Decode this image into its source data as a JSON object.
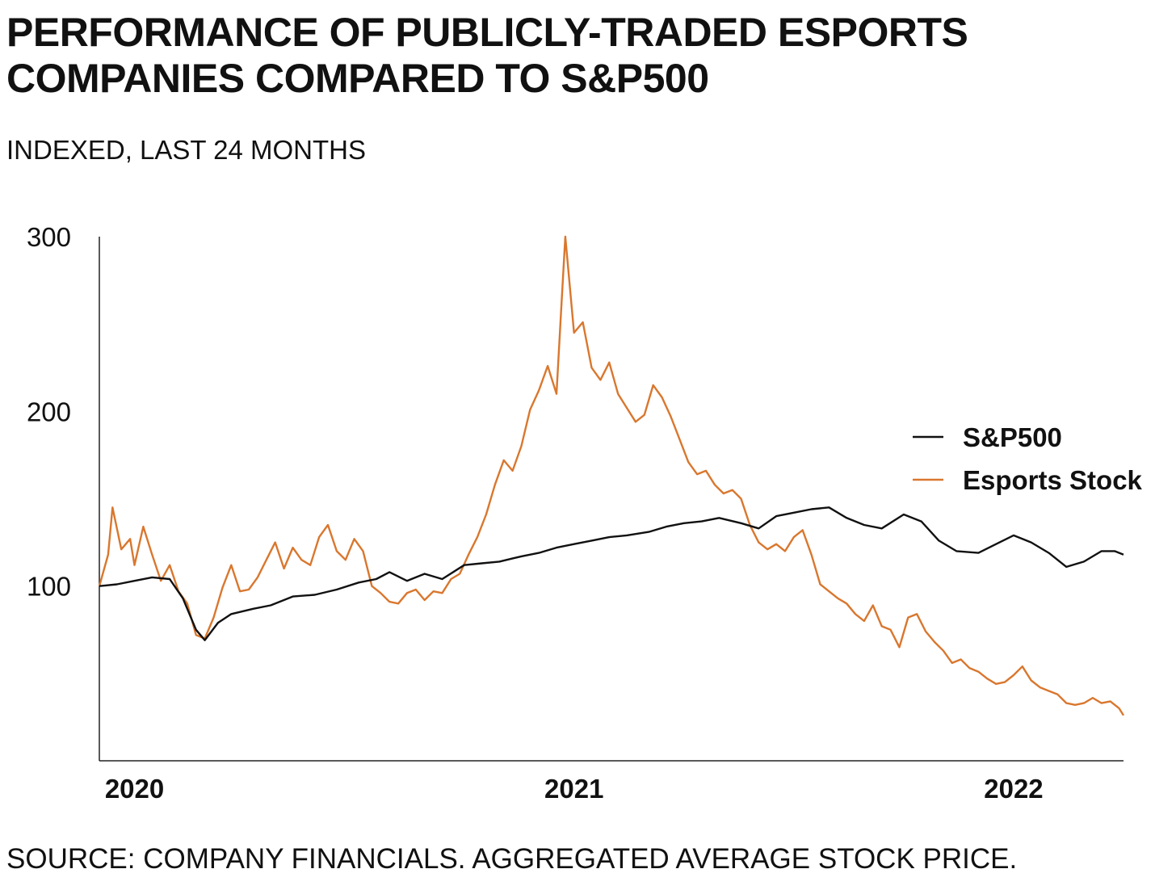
{
  "chart_data": {
    "type": "line",
    "title_line1": "PERFORMANCE OF PUBLICLY-TRADED ESPORTS",
    "title_line2": "COMPANIES COMPARED TO S&P500",
    "subtitle": "INDEXED, LAST 24 MONTHS",
    "source": "SOURCE: COMPANY FINANCIALS. AGGREGATED AVERAGE STOCK PRICE.",
    "xlabel": "",
    "ylabel": "",
    "x_range": [
      2019.92,
      2022.25
    ],
    "ylim": [
      0,
      300
    ],
    "y_ticks": [
      100,
      200,
      300
    ],
    "x_ticks": [
      {
        "value": 2020,
        "label": "2020"
      },
      {
        "value": 2021,
        "label": "2021"
      },
      {
        "value": 2022,
        "label": "2022"
      }
    ],
    "legend_position": "right",
    "grid": false,
    "series": [
      {
        "name": "S&P500",
        "color": "#111111",
        "points": [
          [
            2019.92,
            100
          ],
          [
            2019.96,
            101
          ],
          [
            2020.0,
            103
          ],
          [
            2020.04,
            105
          ],
          [
            2020.08,
            104
          ],
          [
            2020.11,
            93
          ],
          [
            2020.14,
            75
          ],
          [
            2020.16,
            69
          ],
          [
            2020.19,
            79
          ],
          [
            2020.22,
            84
          ],
          [
            2020.27,
            87
          ],
          [
            2020.31,
            89
          ],
          [
            2020.36,
            94
          ],
          [
            2020.41,
            95
          ],
          [
            2020.46,
            98
          ],
          [
            2020.51,
            102
          ],
          [
            2020.55,
            104
          ],
          [
            2020.58,
            108
          ],
          [
            2020.62,
            103
          ],
          [
            2020.66,
            107
          ],
          [
            2020.7,
            104
          ],
          [
            2020.75,
            112
          ],
          [
            2020.79,
            113
          ],
          [
            2020.83,
            114
          ],
          [
            2020.88,
            117
          ],
          [
            2020.92,
            119
          ],
          [
            2020.96,
            122
          ],
          [
            2021.0,
            124
          ],
          [
            2021.04,
            126
          ],
          [
            2021.08,
            128
          ],
          [
            2021.12,
            129
          ],
          [
            2021.17,
            131
          ],
          [
            2021.21,
            134
          ],
          [
            2021.25,
            136
          ],
          [
            2021.29,
            137
          ],
          [
            2021.33,
            139
          ],
          [
            2021.38,
            136
          ],
          [
            2021.42,
            133
          ],
          [
            2021.46,
            140
          ],
          [
            2021.5,
            142
          ],
          [
            2021.54,
            144
          ],
          [
            2021.58,
            145
          ],
          [
            2021.62,
            139
          ],
          [
            2021.66,
            135
          ],
          [
            2021.7,
            133
          ],
          [
            2021.75,
            141
          ],
          [
            2021.79,
            137
          ],
          [
            2021.83,
            126
          ],
          [
            2021.87,
            120
          ],
          [
            2021.92,
            119
          ],
          [
            2021.96,
            124
          ],
          [
            2022.0,
            129
          ],
          [
            2022.04,
            125
          ],
          [
            2022.08,
            119
          ],
          [
            2022.12,
            111
          ],
          [
            2022.16,
            114
          ],
          [
            2022.2,
            120
          ],
          [
            2022.23,
            120
          ],
          [
            2022.25,
            118
          ]
        ]
      },
      {
        "name": "Esports Stock",
        "color": "#d9772e",
        "points": [
          [
            2019.92,
            100
          ],
          [
            2019.94,
            118
          ],
          [
            2019.95,
            145
          ],
          [
            2019.97,
            121
          ],
          [
            2019.99,
            127
          ],
          [
            2020.0,
            112
          ],
          [
            2020.02,
            134
          ],
          [
            2020.04,
            118
          ],
          [
            2020.06,
            103
          ],
          [
            2020.08,
            112
          ],
          [
            2020.1,
            97
          ],
          [
            2020.12,
            90
          ],
          [
            2020.14,
            72
          ],
          [
            2020.16,
            70
          ],
          [
            2020.18,
            82
          ],
          [
            2020.2,
            99
          ],
          [
            2020.22,
            112
          ],
          [
            2020.24,
            97
          ],
          [
            2020.26,
            98
          ],
          [
            2020.28,
            105
          ],
          [
            2020.3,
            115
          ],
          [
            2020.32,
            125
          ],
          [
            2020.34,
            110
          ],
          [
            2020.36,
            122
          ],
          [
            2020.38,
            115
          ],
          [
            2020.4,
            112
          ],
          [
            2020.42,
            128
          ],
          [
            2020.44,
            135
          ],
          [
            2020.46,
            120
          ],
          [
            2020.48,
            115
          ],
          [
            2020.5,
            127
          ],
          [
            2020.52,
            120
          ],
          [
            2020.54,
            100
          ],
          [
            2020.56,
            96
          ],
          [
            2020.58,
            91
          ],
          [
            2020.6,
            90
          ],
          [
            2020.62,
            96
          ],
          [
            2020.64,
            98
          ],
          [
            2020.66,
            92
          ],
          [
            2020.68,
            97
          ],
          [
            2020.7,
            96
          ],
          [
            2020.72,
            104
          ],
          [
            2020.74,
            107
          ],
          [
            2020.76,
            118
          ],
          [
            2020.78,
            128
          ],
          [
            2020.8,
            141
          ],
          [
            2020.82,
            158
          ],
          [
            2020.84,
            172
          ],
          [
            2020.86,
            166
          ],
          [
            2020.88,
            180
          ],
          [
            2020.9,
            201
          ],
          [
            2020.92,
            212
          ],
          [
            2020.94,
            226
          ],
          [
            2020.96,
            210
          ],
          [
            2020.97,
            255
          ],
          [
            2020.98,
            300
          ],
          [
            2021.0,
            245
          ],
          [
            2021.02,
            251
          ],
          [
            2021.04,
            225
          ],
          [
            2021.06,
            218
          ],
          [
            2021.08,
            228
          ],
          [
            2021.1,
            210
          ],
          [
            2021.12,
            202
          ],
          [
            2021.14,
            194
          ],
          [
            2021.16,
            198
          ],
          [
            2021.18,
            215
          ],
          [
            2021.2,
            208
          ],
          [
            2021.22,
            197
          ],
          [
            2021.24,
            184
          ],
          [
            2021.26,
            171
          ],
          [
            2021.28,
            164
          ],
          [
            2021.3,
            166
          ],
          [
            2021.32,
            158
          ],
          [
            2021.34,
            153
          ],
          [
            2021.36,
            155
          ],
          [
            2021.38,
            150
          ],
          [
            2021.4,
            135
          ],
          [
            2021.42,
            125
          ],
          [
            2021.44,
            121
          ],
          [
            2021.46,
            124
          ],
          [
            2021.48,
            120
          ],
          [
            2021.5,
            128
          ],
          [
            2021.52,
            132
          ],
          [
            2021.54,
            118
          ],
          [
            2021.56,
            101
          ],
          [
            2021.58,
            97
          ],
          [
            2021.6,
            93
          ],
          [
            2021.62,
            90
          ],
          [
            2021.64,
            84
          ],
          [
            2021.66,
            80
          ],
          [
            2021.68,
            89
          ],
          [
            2021.7,
            77
          ],
          [
            2021.72,
            75
          ],
          [
            2021.74,
            65
          ],
          [
            2021.76,
            82
          ],
          [
            2021.78,
            84
          ],
          [
            2021.8,
            74
          ],
          [
            2021.82,
            68
          ],
          [
            2021.84,
            63
          ],
          [
            2021.86,
            56
          ],
          [
            2021.88,
            58
          ],
          [
            2021.9,
            53
          ],
          [
            2021.92,
            51
          ],
          [
            2021.94,
            47
          ],
          [
            2021.96,
            44
          ],
          [
            2021.98,
            45
          ],
          [
            2022.0,
            49
          ],
          [
            2022.02,
            54
          ],
          [
            2022.04,
            46
          ],
          [
            2022.06,
            42
          ],
          [
            2022.08,
            40
          ],
          [
            2022.1,
            38
          ],
          [
            2022.12,
            33
          ],
          [
            2022.14,
            32
          ],
          [
            2022.16,
            33
          ],
          [
            2022.18,
            36
          ],
          [
            2022.2,
            33
          ],
          [
            2022.22,
            34
          ],
          [
            2022.24,
            30
          ],
          [
            2022.25,
            26
          ]
        ]
      }
    ]
  }
}
